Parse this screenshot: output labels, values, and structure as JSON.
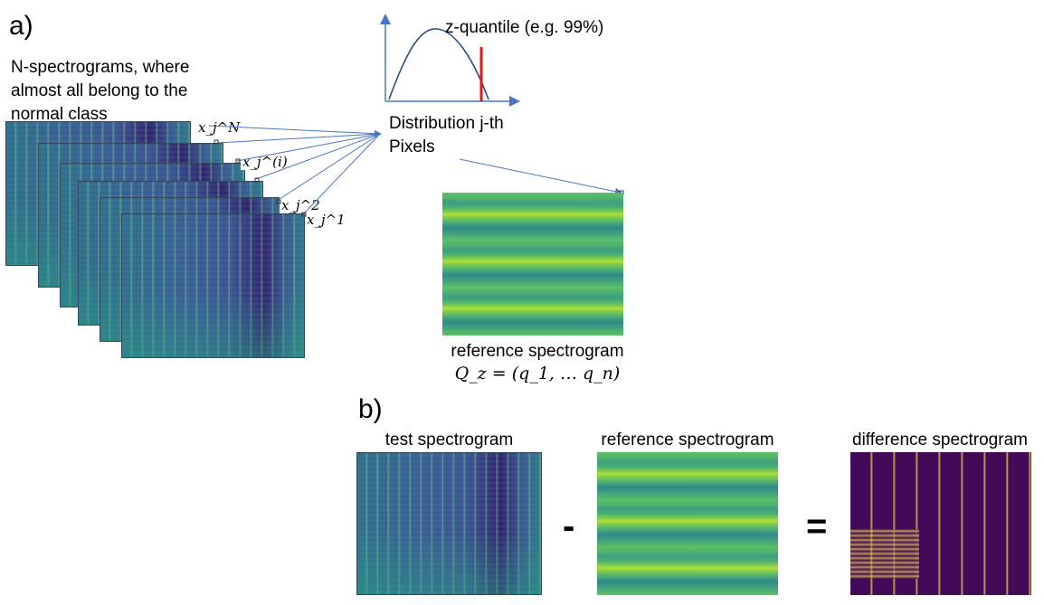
{
  "panel_a": {
    "label": "a)",
    "input_caption": [
      "N-spectrograms, where",
      "almost all belong to the",
      "normal class"
    ],
    "pixel_labels": [
      "x_j^N",
      "x_j^(i)",
      "x_j^2",
      "x_j^1"
    ],
    "quantile_label": "z-quantile (e.g. 99%)",
    "distribution_label": [
      "Distribution j-th",
      "Pixels"
    ],
    "reference_caption": "reference spectrogram",
    "reference_formula": "Q_z = (q_1, … q_n)"
  },
  "panel_b": {
    "label": "b)",
    "titles": [
      "test spectrogram",
      "reference spectrogram",
      "difference spectrogram"
    ],
    "operators": [
      "-",
      "="
    ]
  },
  "colors": {
    "arrow": "#4a74c4",
    "curve": "#2e4f8f",
    "quantile_line": "#e01818"
  }
}
